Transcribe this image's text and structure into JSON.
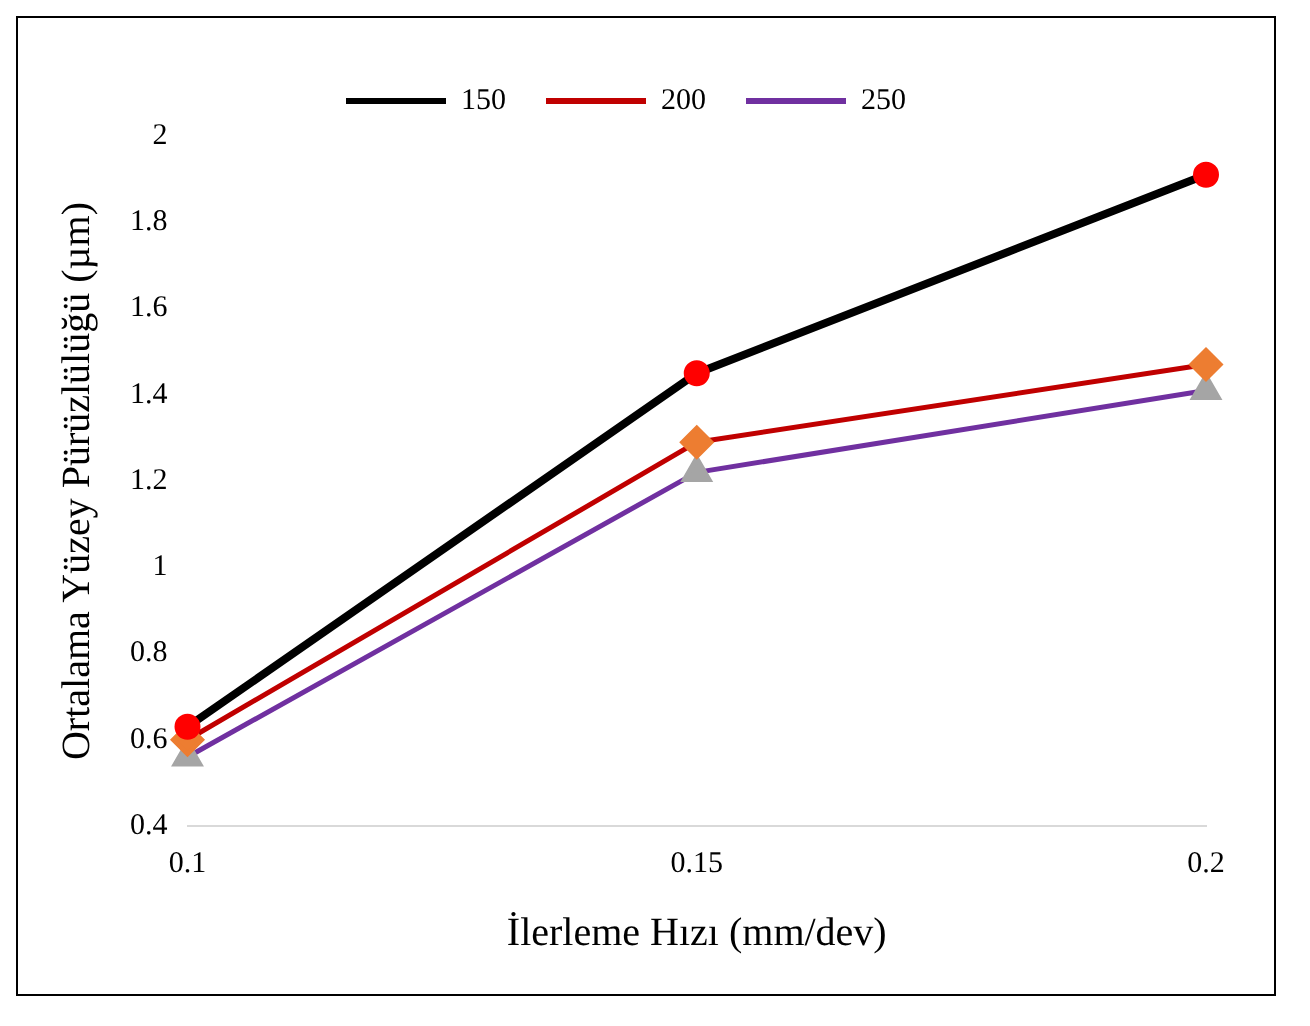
{
  "chart_data": {
    "type": "line",
    "xlabel": "İlerleme Hızı (mm/dev)",
    "ylabel": "Ortalama Yüzey Pürüzlülüğü (µm)",
    "categories": [
      "0.1",
      "0.15",
      "0.2"
    ],
    "series": [
      {
        "name": "150",
        "color": "#000000",
        "marker": "circle",
        "colors": [
          "#ff0000",
          "#ff0000",
          "#ff0000"
        ],
        "values": [
          0.63,
          1.45,
          1.91
        ]
      },
      {
        "name": "200",
        "color": "#c00000",
        "marker": "diamond",
        "colors": [
          "#ed7d31",
          "#ed7d31",
          "#ed7d31"
        ],
        "values": [
          0.6,
          1.29,
          1.47
        ]
      },
      {
        "name": "250",
        "color": "#7030a0",
        "marker": "triangle",
        "colors": [
          "#a5a5a5",
          "#a5a5a5",
          "#a5a5a5"
        ],
        "values": [
          0.56,
          1.22,
          1.41
        ]
      }
    ],
    "ylim": [
      0.4,
      2
    ],
    "yticks": [
      0.4,
      0.6,
      0.8,
      1,
      1.2,
      1.4,
      1.6,
      1.8,
      2
    ],
    "grid": false,
    "legend": "top",
    "line_style": "solid"
  }
}
